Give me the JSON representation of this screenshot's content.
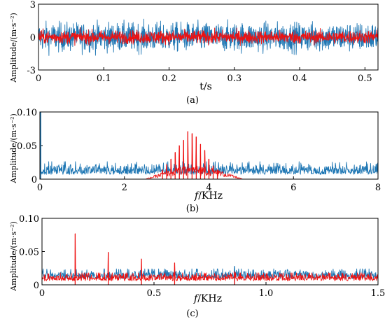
{
  "colors": {
    "blue": "#1f77b4",
    "red": "#ee1111",
    "axes": "#000000"
  },
  "chart_data": [
    {
      "id": "a",
      "type": "line",
      "caption": "(a)",
      "xlabel": "t/s",
      "ylabel": "Amplitude/(m·s⁻²)",
      "xlim": [
        0,
        0.52
      ],
      "ylim": [
        -3,
        3
      ],
      "xticks": [
        0,
        0.1,
        0.2,
        0.3,
        0.4,
        0.5
      ],
      "xtick_labels": [
        "0",
        "0.1",
        "0.2",
        "0.3",
        "0.4",
        "0.5"
      ],
      "yticks": [
        -3,
        0,
        3
      ],
      "ytick_labels": [
        "-3",
        "0",
        "3"
      ],
      "grid": false,
      "series": [
        {
          "color": "#1f77b4",
          "kind": "noise",
          "sample_count": 1300,
          "base": 0,
          "spread": 0.65,
          "range": [
            -2.4,
            2.4
          ]
        },
        {
          "color": "#ee1111",
          "kind": "noise",
          "sample_count": 1300,
          "base": 0,
          "spread": 0.3,
          "range": [
            -0.9,
            0.9
          ]
        }
      ]
    },
    {
      "id": "b",
      "type": "line",
      "caption": "(b)",
      "xlabel_italic": "f",
      "xlabel_rest": "/KHz",
      "ylabel": "Amplitude/(m·s⁻²)",
      "xlim": [
        0,
        8
      ],
      "ylim": [
        0,
        0.1
      ],
      "xticks": [
        0,
        2,
        4,
        6,
        8
      ],
      "xtick_labels": [
        "0",
        "2",
        "4",
        "6",
        "8"
      ],
      "yticks": [
        0,
        0.05,
        0.1
      ],
      "ytick_labels": [
        "0",
        "0.05",
        "0.10"
      ],
      "grid": false,
      "series": [
        {
          "color": "#1f77b4",
          "kind": "spectrum-noise",
          "sample_count": 1000,
          "base": 0.007,
          "spread": 0.008,
          "max": 0.026,
          "spikes": [
            {
              "x": 0.02,
              "y": 0.1
            }
          ]
        },
        {
          "color": "#ee1111",
          "kind": "sideband-hump",
          "sample_count": 700,
          "hump": {
            "start": 2.5,
            "end": 4.8,
            "peak_x": 3.6,
            "peak_y": 0.016
          },
          "spikes": [
            {
              "x": 2.9,
              "y": 0.014
            },
            {
              "x": 3.0,
              "y": 0.022
            },
            {
              "x": 3.1,
              "y": 0.03
            },
            {
              "x": 3.2,
              "y": 0.04
            },
            {
              "x": 3.3,
              "y": 0.05
            },
            {
              "x": 3.4,
              "y": 0.058
            },
            {
              "x": 3.5,
              "y": 0.071
            },
            {
              "x": 3.6,
              "y": 0.068
            },
            {
              "x": 3.7,
              "y": 0.063
            },
            {
              "x": 3.8,
              "y": 0.052
            },
            {
              "x": 3.9,
              "y": 0.043
            },
            {
              "x": 4.0,
              "y": 0.03
            },
            {
              "x": 4.1,
              "y": 0.02
            },
            {
              "x": 4.2,
              "y": 0.014
            }
          ]
        }
      ]
    },
    {
      "id": "c",
      "type": "line",
      "caption": "(c)",
      "xlabel_italic": "f",
      "xlabel_rest": "/KHz",
      "ylabel": "Amplitude/(m·s⁻²)",
      "xlim": [
        0,
        1.5
      ],
      "ylim": [
        0,
        0.1
      ],
      "xticks": [
        0,
        0.5,
        1.0,
        1.5
      ],
      "xtick_labels": [
        "0",
        "0.5",
        "1.0",
        "1.5"
      ],
      "yticks": [
        0,
        0.05,
        0.1
      ],
      "ytick_labels": [
        "0",
        "0.05",
        "0.10"
      ],
      "grid": false,
      "series": [
        {
          "color": "#1f77b4",
          "kind": "spectrum-noise",
          "sample_count": 900,
          "base": 0.009,
          "spread": 0.007,
          "max": 0.024,
          "spikes": [
            {
              "x": 0.86,
              "y": 0.028
            }
          ]
        },
        {
          "color": "#ee1111",
          "kind": "spectrum-noise",
          "sample_count": 900,
          "base": 0.006,
          "spread": 0.006,
          "max": 0.018,
          "spikes": [
            {
              "x": 0.148,
              "y": 0.077
            },
            {
              "x": 0.296,
              "y": 0.049
            },
            {
              "x": 0.444,
              "y": 0.039
            },
            {
              "x": 0.592,
              "y": 0.033
            },
            {
              "x": 0.86,
              "y": 0.02
            }
          ]
        }
      ]
    }
  ]
}
